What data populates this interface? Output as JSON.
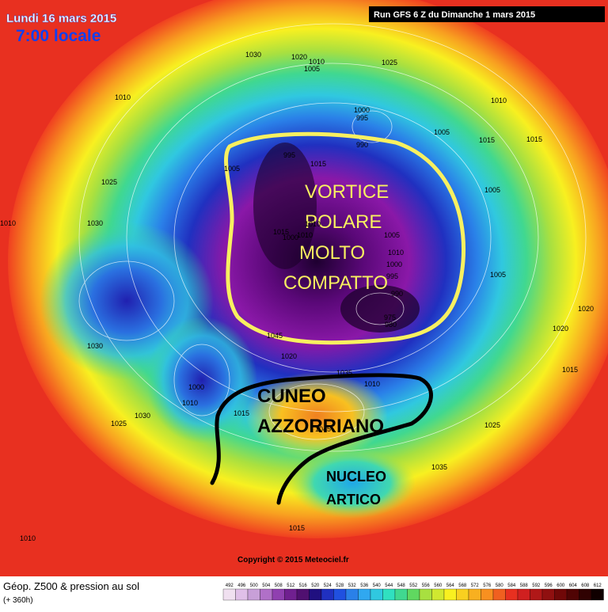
{
  "header": {
    "date": "Lundi 16 mars 2015",
    "time": "7:00 locale",
    "run": "Run GFS 6 Z du Dimanche 1 mars 2015"
  },
  "annotations": {
    "vortex": [
      "VORTICE",
      "POLARE",
      "MOLTO",
      "COMPATTO"
    ],
    "wedge": [
      "CUNEO",
      "AZZORRIANO"
    ],
    "nucleus": [
      "NUCLEO",
      "ARTICO"
    ]
  },
  "pressure_labels": [
    "1030",
    "1020",
    "1010",
    "1005",
    "1025",
    "1010",
    "1000",
    "995",
    "990",
    "995",
    "1005",
    "1015",
    "1005",
    "1015",
    "1005",
    "1025",
    "1030",
    "1010",
    "1015",
    "1000",
    "1010",
    "1005",
    "1010",
    "1000",
    "995",
    "990",
    "975",
    "980",
    "1045",
    "1020",
    "1035",
    "1010",
    "1030",
    "1000",
    "1010",
    "1030",
    "1025",
    "1045",
    "1015",
    "1025",
    "1035",
    "1015",
    "1010",
    "1010",
    "1015",
    "1020",
    "1015",
    "1005",
    "1020",
    "1010"
  ],
  "copyright": "Copyright © 2015 Meteociel.fr",
  "footer": {
    "title": "Géop. Z500 & pression au sol",
    "lead": "(+ 360h)",
    "scale": [
      492,
      496,
      500,
      504,
      508,
      512,
      516,
      520,
      524,
      528,
      532,
      536,
      540,
      544,
      548,
      552,
      556,
      560,
      564,
      568,
      572,
      576,
      580,
      584,
      588,
      592,
      596,
      600,
      604,
      608,
      612
    ]
  }
}
